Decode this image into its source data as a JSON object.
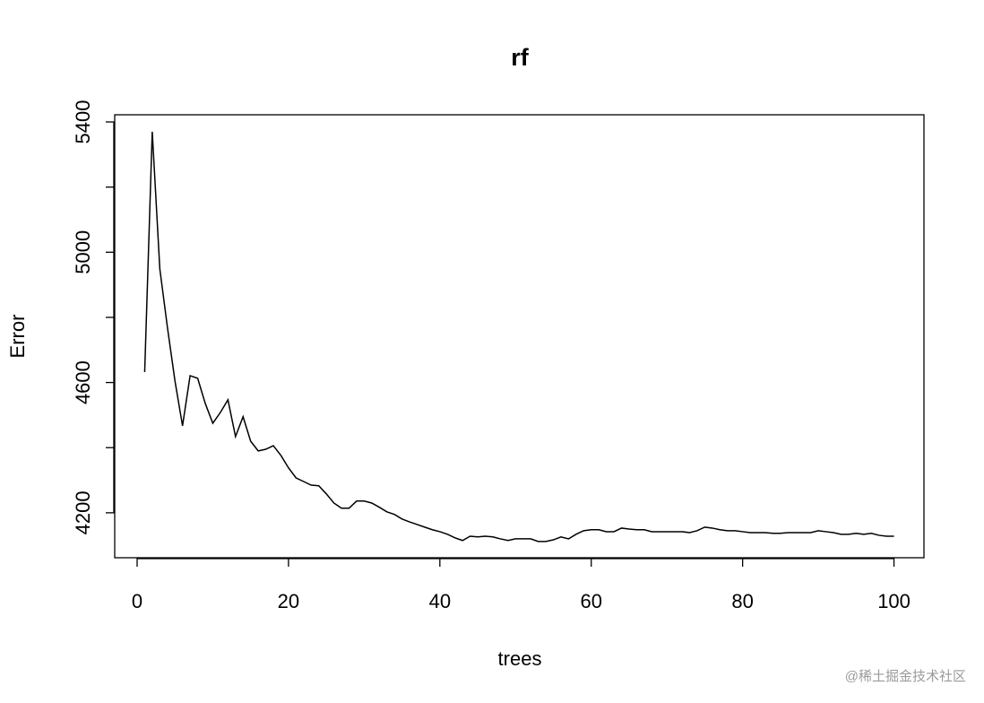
{
  "chart_data": {
    "type": "line",
    "title": "rf",
    "x_label": "trees",
    "y_label": "Error",
    "x": [
      1,
      2,
      3,
      4,
      5,
      6,
      7,
      8,
      9,
      10,
      11,
      12,
      13,
      14,
      15,
      16,
      17,
      18,
      19,
      20,
      21,
      22,
      23,
      24,
      25,
      26,
      27,
      28,
      29,
      30,
      31,
      32,
      33,
      34,
      35,
      36,
      37,
      38,
      39,
      40,
      41,
      42,
      43,
      44,
      45,
      46,
      47,
      48,
      49,
      50,
      51,
      52,
      53,
      54,
      55,
      56,
      57,
      58,
      59,
      60,
      61,
      62,
      63,
      64,
      65,
      66,
      67,
      68,
      69,
      70,
      71,
      72,
      73,
      74,
      75,
      76,
      77,
      78,
      79,
      80,
      81,
      82,
      83,
      84,
      85,
      86,
      87,
      88,
      89,
      90,
      91,
      92,
      93,
      94,
      95,
      96,
      97,
      98,
      99,
      100
    ],
    "series": [
      {
        "name": "Error",
        "color": "#000000",
        "values": [
          4632,
          5370,
          4949,
          4770,
          4605,
          4467,
          4621,
          4613,
          4536,
          4475,
          4508,
          4547,
          4434,
          4495,
          4420,
          4390,
          4395,
          4406,
          4376,
          4338,
          4307,
          4296,
          4285,
          4283,
          4258,
          4230,
          4214,
          4214,
          4236,
          4236,
          4230,
          4217,
          4203,
          4195,
          4181,
          4172,
          4164,
          4156,
          4148,
          4142,
          4134,
          4123,
          4115,
          4128,
          4126,
          4128,
          4126,
          4120,
          4115,
          4120,
          4120,
          4120,
          4112,
          4112,
          4117,
          4126,
          4120,
          4134,
          4145,
          4148,
          4148,
          4142,
          4142,
          4153,
          4150,
          4148,
          4148,
          4142,
          4142,
          4142,
          4142,
          4142,
          4139,
          4145,
          4156,
          4153,
          4148,
          4145,
          4145,
          4142,
          4139,
          4139,
          4139,
          4137,
          4137,
          4139,
          4139,
          4139,
          4139,
          4145,
          4142,
          4139,
          4134,
          4134,
          4137,
          4134,
          4137,
          4131,
          4128,
          4128
        ]
      }
    ],
    "xlim": [
      -2.96,
      103.96
    ],
    "ylim": [
      4062,
      5422
    ],
    "xticks": [
      0,
      20,
      40,
      60,
      80,
      100
    ],
    "yticks": [
      4200,
      4600,
      5000,
      5400
    ],
    "yminor_ticks": [
      4400,
      4800,
      5200
    ],
    "grid": false
  },
  "watermark": "@稀土掘金技术社区"
}
